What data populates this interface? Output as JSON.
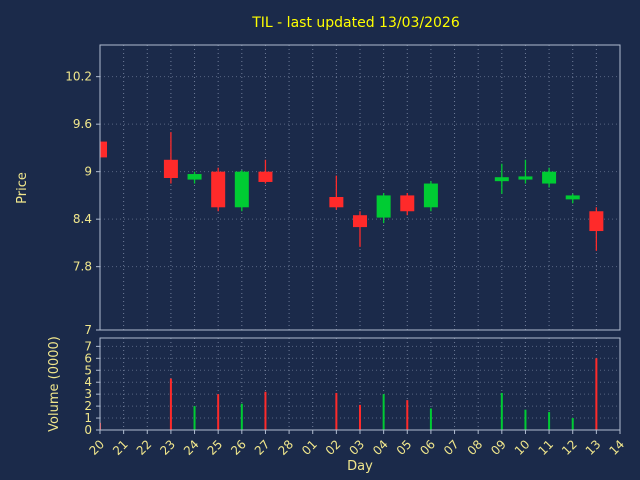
{
  "chart_data": {
    "type": "candlestick",
    "title": "TIL - last updated 13/03/2026",
    "xlabel": "Day",
    "price_ylabel": "Price",
    "volume_ylabel": "Volume (0000)",
    "price_ylim": [
      7,
      10.6
    ],
    "price_ticks": [
      7,
      7.8,
      8.4,
      9,
      9.6,
      10.2
    ],
    "volume_ylim": [
      0,
      7.7
    ],
    "volume_ticks": [
      0,
      1,
      2,
      3,
      4,
      5,
      6,
      7
    ],
    "x_ticklabels": [
      "20",
      "21",
      "22",
      "23",
      "24",
      "25",
      "26",
      "27",
      "28",
      "01",
      "02",
      "03",
      "04",
      "05",
      "06",
      "07",
      "08",
      "09",
      "10",
      "11",
      "12",
      "13",
      "14"
    ],
    "grid": true,
    "legend": "none",
    "colors": {
      "background": "#1b2a4a",
      "title": "#ffff00",
      "label": "#f0e68c",
      "spine": "#b0bcd0",
      "grid": "#7e8ba6",
      "up": "#00cc33",
      "down": "#ff2a2a"
    },
    "candles": [
      {
        "day": "20",
        "open": 9.38,
        "close": 9.18,
        "high": 9.38,
        "low": 9.18,
        "volume": 0.6
      },
      {
        "day": "23",
        "open": 9.15,
        "close": 8.92,
        "high": 9.5,
        "low": 8.85,
        "volume": 4.3
      },
      {
        "day": "24",
        "open": 8.9,
        "close": 8.97,
        "high": 9.0,
        "low": 8.85,
        "volume": 2.0
      },
      {
        "day": "25",
        "open": 9.0,
        "close": 8.55,
        "high": 9.05,
        "low": 8.5,
        "volume": 3.0
      },
      {
        "day": "26",
        "open": 8.55,
        "close": 9.0,
        "high": 9.02,
        "low": 8.5,
        "volume": 2.2
      },
      {
        "day": "27",
        "open": 9.0,
        "close": 8.87,
        "high": 9.15,
        "low": 8.85,
        "volume": 3.2
      },
      {
        "day": "02",
        "open": 8.68,
        "close": 8.55,
        "high": 8.95,
        "low": 8.52,
        "volume": 3.1
      },
      {
        "day": "03",
        "open": 8.45,
        "close": 8.3,
        "high": 8.5,
        "low": 8.05,
        "volume": 2.1
      },
      {
        "day": "04",
        "open": 8.42,
        "close": 8.7,
        "high": 8.73,
        "low": 8.35,
        "volume": 3.0
      },
      {
        "day": "05",
        "open": 8.7,
        "close": 8.5,
        "high": 8.73,
        "low": 8.45,
        "volume": 2.5
      },
      {
        "day": "06",
        "open": 8.55,
        "close": 8.85,
        "high": 8.88,
        "low": 8.5,
        "volume": 1.8
      },
      {
        "day": "09",
        "open": 8.88,
        "close": 8.93,
        "high": 9.1,
        "low": 8.72,
        "volume": 3.1
      },
      {
        "day": "10",
        "open": 8.9,
        "close": 8.94,
        "high": 9.15,
        "low": 8.85,
        "volume": 1.7
      },
      {
        "day": "11",
        "open": 8.85,
        "close": 9.0,
        "high": 9.05,
        "low": 8.8,
        "volume": 1.5
      },
      {
        "day": "12",
        "open": 8.65,
        "close": 8.7,
        "high": 8.72,
        "low": 8.6,
        "volume": 1.0
      },
      {
        "day": "13",
        "open": 8.5,
        "close": 8.25,
        "high": 8.55,
        "low": 8.0,
        "volume": 6.0
      }
    ]
  }
}
